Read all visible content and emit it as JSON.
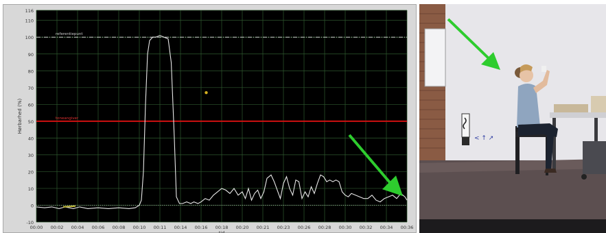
{
  "chart_data": {
    "type": "line",
    "title": "",
    "xlabel": "tid",
    "ylabel": "Hørbarhed (%)",
    "ylim": [
      -10,
      116
    ],
    "xlim": [
      0,
      36
    ],
    "y_ticks": [
      "-10",
      "0",
      "10",
      "20",
      "30",
      "40",
      "50",
      "60",
      "70",
      "80",
      "90",
      "100",
      "110",
      "116"
    ],
    "x_ticks": [
      "00:00",
      "00:02",
      "00:04",
      "00:06",
      "00:08",
      "00:10",
      "00:11",
      "00:14",
      "00:16",
      "00:18",
      "00:20",
      "00:21",
      "00:23",
      "00:26",
      "00:28",
      "00:30",
      "00:32",
      "00:34",
      "00:36"
    ],
    "grid": true,
    "reference_lines": [
      {
        "label": "referentiepunt",
        "y": 100,
        "color": "#cfcfcf",
        "style": "dash-dot"
      },
      {
        "label": "toneangiver",
        "y": 50,
        "color": "#d01010",
        "style": "solid"
      }
    ],
    "marker_point": {
      "x": 16.5,
      "y": 67,
      "color": "#d4b020"
    },
    "series": [
      {
        "color": "#e8e8e8",
        "x": [
          0,
          0.8,
          1.5,
          2.2,
          2.8,
          3.2,
          3.6,
          4.2,
          5,
          6,
          7,
          8,
          9,
          9.6,
          10,
          10.2,
          10.4,
          10.6,
          10.8,
          11,
          11.3,
          11.6,
          12,
          12.4,
          12.8,
          13.1,
          13.4,
          13.6,
          13.9,
          14.2,
          14.6,
          15,
          15.3,
          15.7,
          16,
          16.4,
          16.8,
          17.2,
          17.6,
          18,
          18.4,
          18.8,
          19.2,
          19.6,
          20,
          20.3,
          20.6,
          20.9,
          21.2,
          21.5,
          21.8,
          22.1,
          22.4,
          22.8,
          23.1,
          23.4,
          23.7,
          24,
          24.3,
          24.6,
          24.9,
          25.2,
          25.5,
          25.8,
          26.1,
          26.4,
          26.7,
          27,
          27.3,
          27.6,
          27.9,
          28.2,
          28.5,
          28.8,
          29.1,
          29.4,
          29.7,
          30,
          30.3,
          30.6,
          31,
          31.4,
          31.8,
          32.2,
          32.6,
          33,
          33.4,
          33.8,
          34.2,
          34.6,
          35,
          35.4,
          35.8,
          36
        ],
        "y": [
          -1,
          -1.5,
          -1,
          -2,
          -1,
          -1.5,
          -2,
          -1,
          -2,
          -1.5,
          -2,
          -1.5,
          -2,
          -1.5,
          0,
          3,
          20,
          60,
          90,
          98,
          100,
          100,
          101,
          100,
          99,
          85,
          40,
          5,
          1,
          1,
          2,
          1,
          2,
          1,
          2,
          4,
          3,
          6,
          8,
          10,
          9,
          7,
          10,
          6,
          8,
          4,
          10,
          3,
          7,
          9,
          4,
          8,
          16,
          18,
          14,
          9,
          4,
          13,
          17,
          10,
          6,
          15,
          14,
          4,
          8,
          5,
          11,
          7,
          13,
          18,
          17,
          14,
          15,
          14,
          15,
          14,
          8,
          6,
          5,
          7,
          6,
          5,
          4,
          4,
          6,
          3,
          2,
          4,
          5,
          6,
          4,
          7,
          5,
          3
        ]
      }
    ],
    "annotations": [
      {
        "type": "arrow",
        "color": "#2ecc2e",
        "target": "series-end"
      }
    ]
  },
  "video_frame": {
    "description_hidden": true,
    "arrow_color": "#2ecc2e"
  }
}
